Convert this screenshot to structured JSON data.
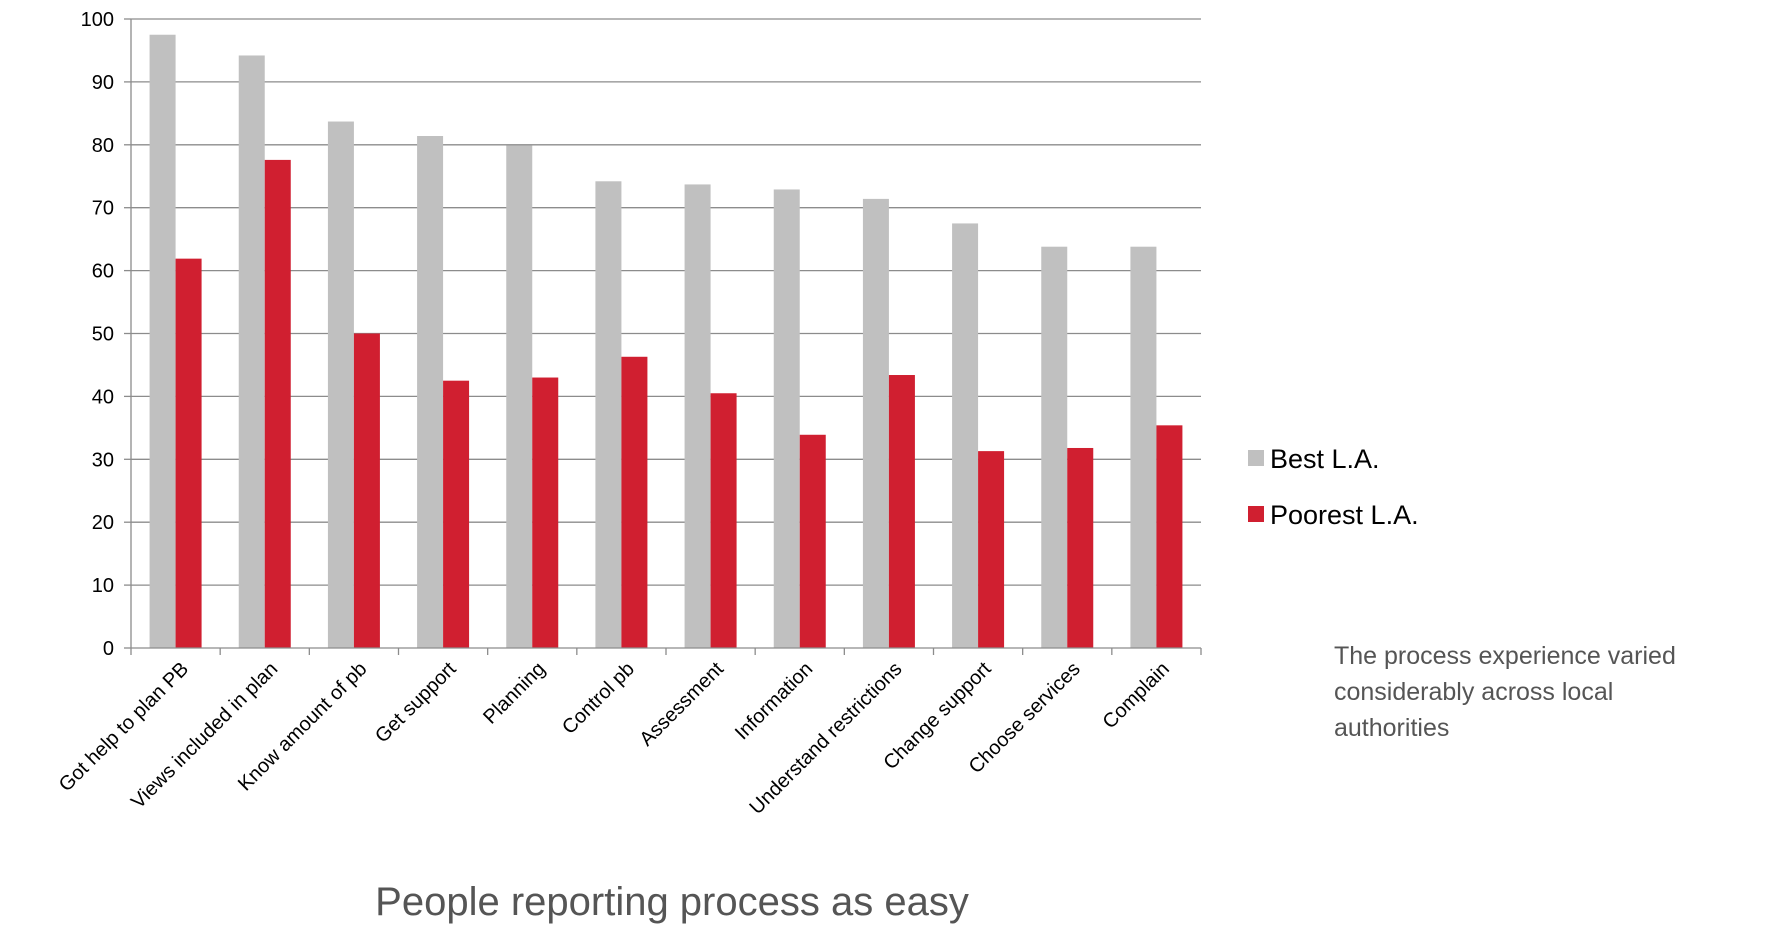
{
  "chart_data": {
    "type": "bar",
    "title": "",
    "xlabel": "People reporting process as easy",
    "ylabel": "",
    "ylim": [
      0,
      100
    ],
    "yticks": [
      0,
      10,
      20,
      30,
      40,
      50,
      60,
      70,
      80,
      90,
      100
    ],
    "grid": "horizontal",
    "legend_position": "right",
    "categories": [
      "Got help to plan PB",
      "Views included in plan",
      "Know amount of pb",
      "Get support",
      "Planning",
      "Control pb",
      "Assessment",
      "Information",
      "Understand restrictions",
      "Change support",
      "Choose services",
      "Complain"
    ],
    "series": [
      {
        "name": "Best L.A.",
        "color": "#c0c0c0",
        "values": [
          97.5,
          94.2,
          83.7,
          81.4,
          79.9,
          74.2,
          73.7,
          72.9,
          71.4,
          67.5,
          63.8,
          63.8
        ]
      },
      {
        "name": "Poorest L.A.",
        "color": "#d01f30",
        "values": [
          61.9,
          77.6,
          50.0,
          42.5,
          43.0,
          46.3,
          40.5,
          33.9,
          43.4,
          31.3,
          31.8,
          35.4
        ]
      }
    ]
  },
  "annotation": {
    "text": "The process experience varied\nconsiderably across local\nauthorities"
  }
}
